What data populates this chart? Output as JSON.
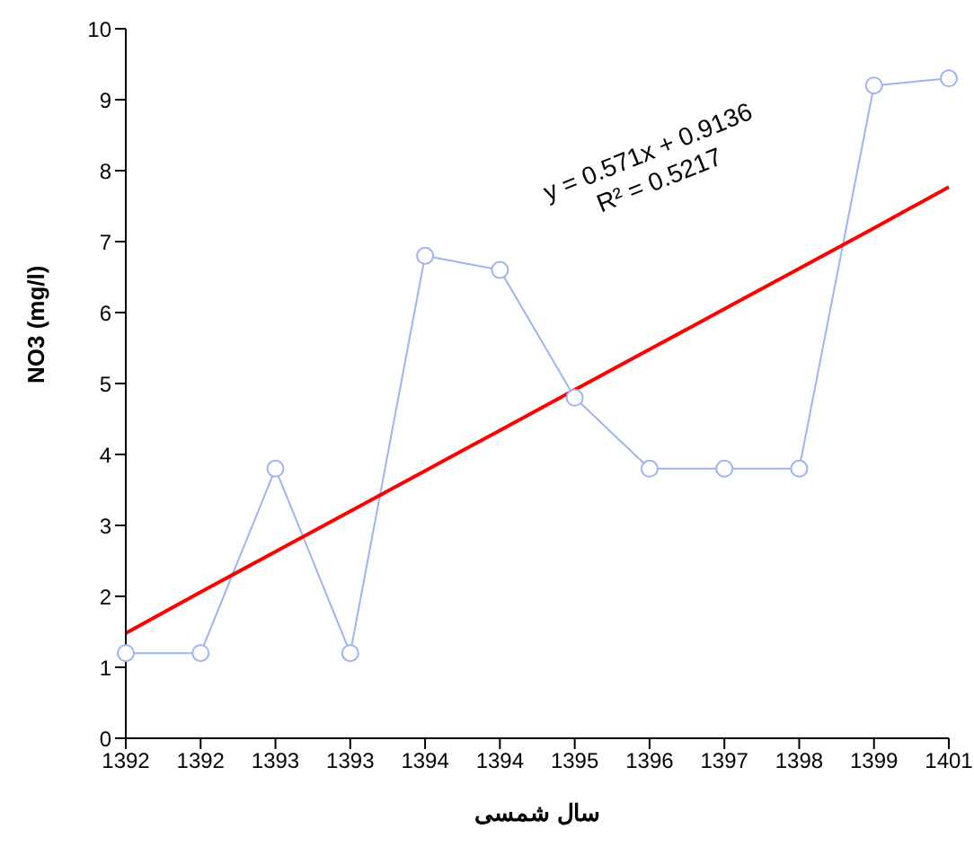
{
  "chart_data": {
    "type": "line",
    "xlabel": "سال شمسی",
    "ylabel": "NO3 (mg/l)",
    "categories": [
      "1392",
      "1392",
      "1393",
      "1393",
      "1394",
      "1394",
      "1395",
      "1396",
      "1397",
      "1398",
      "1399",
      "1401"
    ],
    "series": [
      {
        "color": "#9db3f2",
        "values": [
          1.2,
          1.2,
          3.8,
          1.2,
          6.8,
          6.6,
          4.8,
          3.8,
          3.8,
          3.8,
          9.2,
          9.3
        ]
      },
      {
        "type": "line",
        "marker": "none",
        "color": "#ff0000",
        "values": [
          1.48,
          2.06,
          2.63,
          3.2,
          3.77,
          4.34,
          4.91,
          5.48,
          6.05,
          6.62,
          7.19,
          7.77
        ]
      }
    ],
    "ylim": [
      0,
      10
    ],
    "yticks": [
      0,
      1,
      2,
      3,
      4,
      5,
      6,
      7,
      8,
      9,
      10
    ],
    "marker": "circle",
    "annotations": [
      "y = 0.571x + 0.9136",
      "R² = 0.5217"
    ]
  }
}
